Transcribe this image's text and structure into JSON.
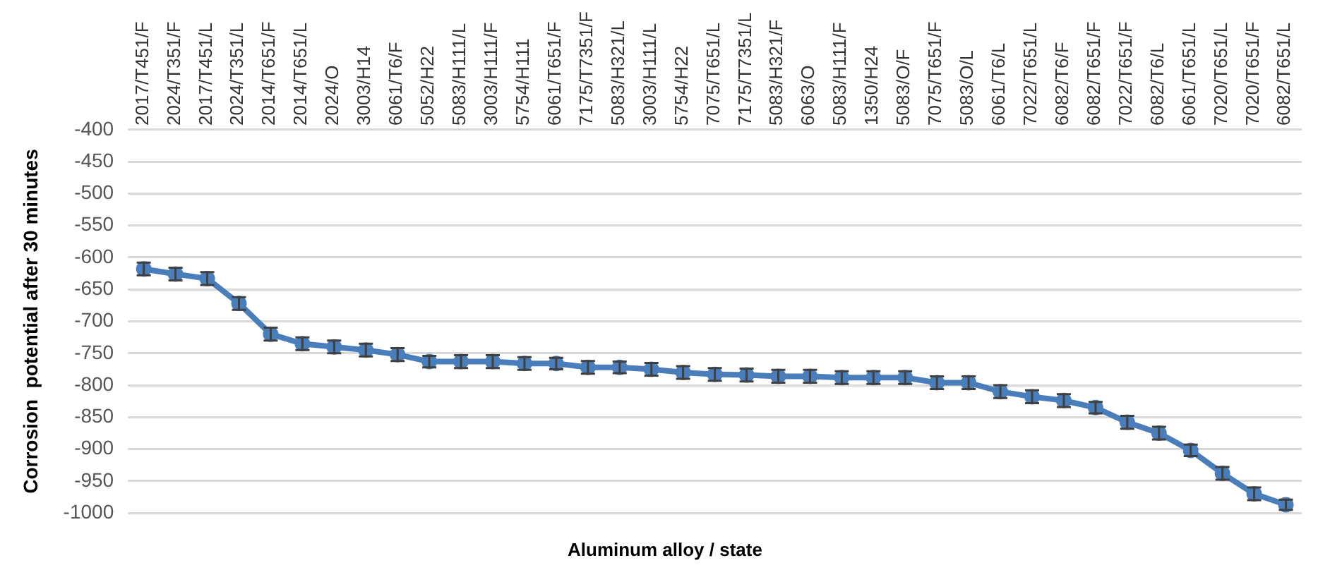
{
  "chart_data": {
    "type": "line",
    "xlabel": "Aluminum alloy / state",
    "ylabel": "Corrosion  potential after 30 minutes",
    "categories": [
      "2017/T451/F",
      "2024/T351/F",
      "2017/T451/L",
      "2024/T351/L",
      "2014/T651/F",
      "2014/T651/L",
      "2024/O",
      "3003/H14",
      "6061/T6/F",
      "5052/H22",
      "5083/H111/L",
      "3003/H111/F",
      "5754/H111",
      "6061/T651/F",
      "7175/T7351/F",
      "5083/H321/L",
      "3003/H111/L",
      "5754/H22",
      "7075/T651/L",
      "7175/T7351/L",
      "5083/H321/F",
      "6063/O",
      "5083/H111/F",
      "1350/H24",
      "5083/O/F",
      "7075/T651/F",
      "5083/O/L",
      "6061/T6/L",
      "7022/T651/L",
      "6082/T6/F",
      "6082/T651/F",
      "7022/T651/F",
      "6082/T6/L",
      "6061/T651/L",
      "7020/T651/L",
      "7020/T651/F",
      "6082/T651/L"
    ],
    "series": [
      {
        "color": "#4a7ebb",
        "values": [
          -618,
          -626,
          -633,
          -672,
          -720,
          -735,
          -740,
          -745,
          -752,
          -763,
          -763,
          -763,
          -766,
          -766,
          -772,
          -772,
          -775,
          -780,
          -783,
          -784,
          -786,
          -786,
          -788,
          -788,
          -788,
          -796,
          -796,
          -810,
          -818,
          -824,
          -835,
          -858,
          -875,
          -902,
          -938,
          -970,
          -987
        ],
        "errors": [
          10,
          10,
          10,
          10,
          10,
          10,
          10,
          10,
          10,
          9,
          10,
          10,
          10,
          9,
          10,
          9,
          10,
          10,
          10,
          10,
          10,
          10,
          10,
          10,
          10,
          10,
          10,
          10,
          10,
          10,
          9,
          10,
          10,
          9,
          10,
          10,
          8
        ]
      }
    ],
    "ylim": [
      -1000,
      -400
    ],
    "yticks": [
      -1000,
      -950,
      -900,
      -850,
      -800,
      -750,
      -700,
      -650,
      -600,
      -550,
      -500,
      -450,
      -400
    ],
    "grid": "y",
    "legend": false,
    "marker": "circle",
    "line_style": "solid"
  }
}
